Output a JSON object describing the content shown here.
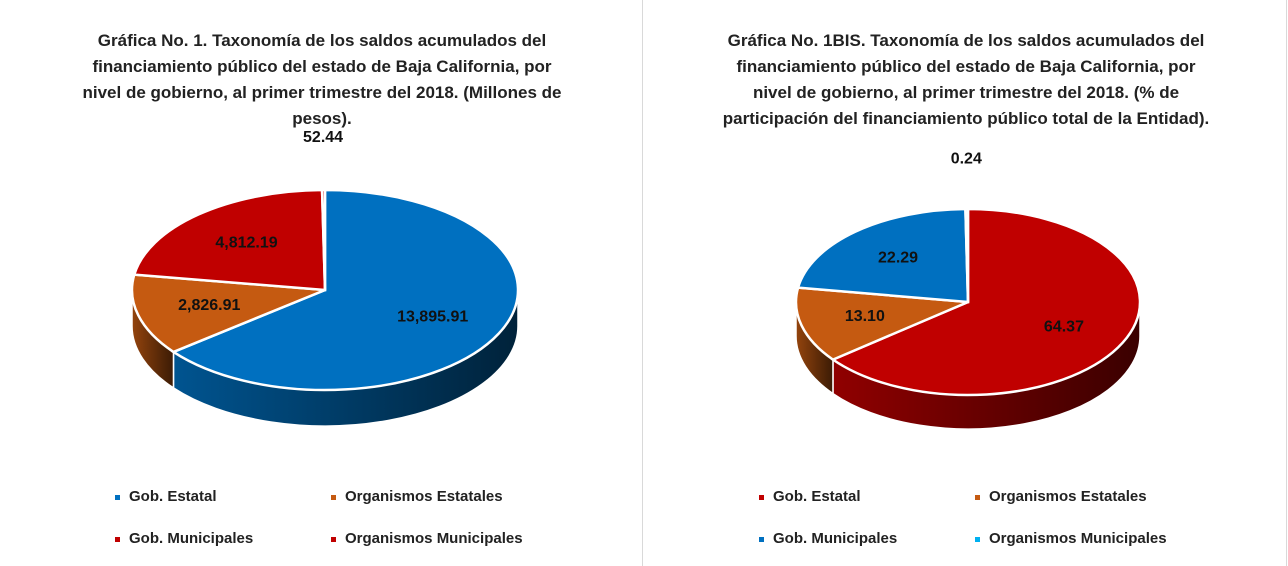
{
  "chart_data": [
    {
      "type": "pie",
      "title": "Gráfica No. 1. Taxonomía de los saldos acumulados del financiamiento público del estado de Baja California, por nivel de gobierno, al primer trimestre del 2018. (Millones de pesos).",
      "categories": [
        "Gob. Estatal",
        "Organismos Estatales",
        "Gob. Municipales",
        "Organismos Municipales"
      ],
      "values": [
        13895.91,
        2826.91,
        4812.19,
        52.44
      ],
      "value_labels": [
        "13,895.91",
        "2,826.91",
        "4,812.19",
        "52.44"
      ],
      "colors": [
        "#0070c0",
        "#c55a11",
        "#c00000",
        "#c00000"
      ]
    },
    {
      "type": "pie",
      "title": "Gráfica No. 1BIS. Taxonomía de los saldos acumulados del financiamiento público del estado de Baja California, por nivel de gobierno, al primer trimestre del 2018. (% de participación del financiamiento público total de la Entidad).",
      "categories": [
        "Gob. Estatal",
        "Organismos Estatales",
        "Gob. Municipales",
        "Organismos Municipales"
      ],
      "values": [
        64.37,
        13.1,
        22.29,
        0.24
      ],
      "value_labels": [
        "64.37",
        "13.10",
        "22.29",
        "0.24"
      ],
      "colors": [
        "#c00000",
        "#c55a11",
        "#0070c0",
        "#00b0f0"
      ]
    }
  ]
}
